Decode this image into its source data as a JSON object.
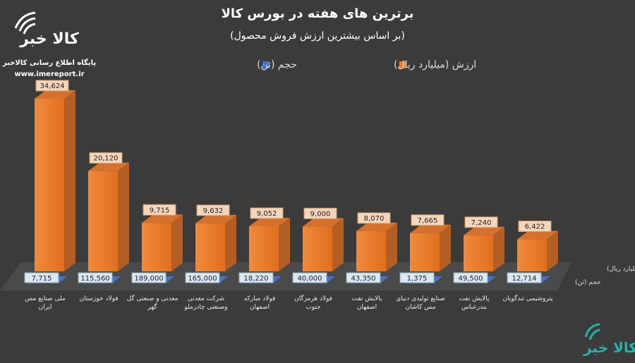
{
  "logo": {
    "name": "کالا خبر",
    "caption": "پایگاه اطلاع رسانی کالاخبر",
    "url": "www.imereport.ir"
  },
  "chart_data": {
    "type": "bar3d",
    "title": "برترین های هفته در بورس کالا",
    "subtitle": "(بر اساس بیشترین ارزش فروش محصول)",
    "categories": [
      "ملی صنایع مس ایران",
      "فولاد خوزستان",
      "معدنی و صنعتی گل گهر",
      "شرکت معدنی وصنعتی چادرملو",
      "فولاد مبارکه اصفهان",
      "فولاد هرمزگان جنوب",
      "پالایش نفت اصفهان",
      "صنایع تولیدی دنیای مس کاشان",
      "پالایش نفت بندرعباس",
      "پتروشیمی تندگویان"
    ],
    "series": [
      {
        "name": "ارزش (میلیارد ریال)",
        "color": "#ed7d31",
        "values": [
          34624,
          20120,
          9715,
          9632,
          9052,
          9000,
          8070,
          7665,
          7240,
          6422
        ],
        "value_labels": [
          "34,624",
          "20,120",
          "9,715",
          "9,632",
          "9,052",
          "9,000",
          "8,070",
          "7,665",
          "7,240",
          "6,422"
        ]
      },
      {
        "name": "حجم (تن)",
        "color": "#4472c4",
        "values": [
          7715,
          115560,
          189000,
          165000,
          18220,
          40000,
          43350,
          1375,
          49500,
          12714
        ],
        "value_labels": [
          "7,715",
          "115,560",
          "189,000",
          "165,000",
          "18,220",
          "40,000",
          "43,350",
          "1,375",
          "49,500",
          "12,714"
        ]
      }
    ]
  }
}
